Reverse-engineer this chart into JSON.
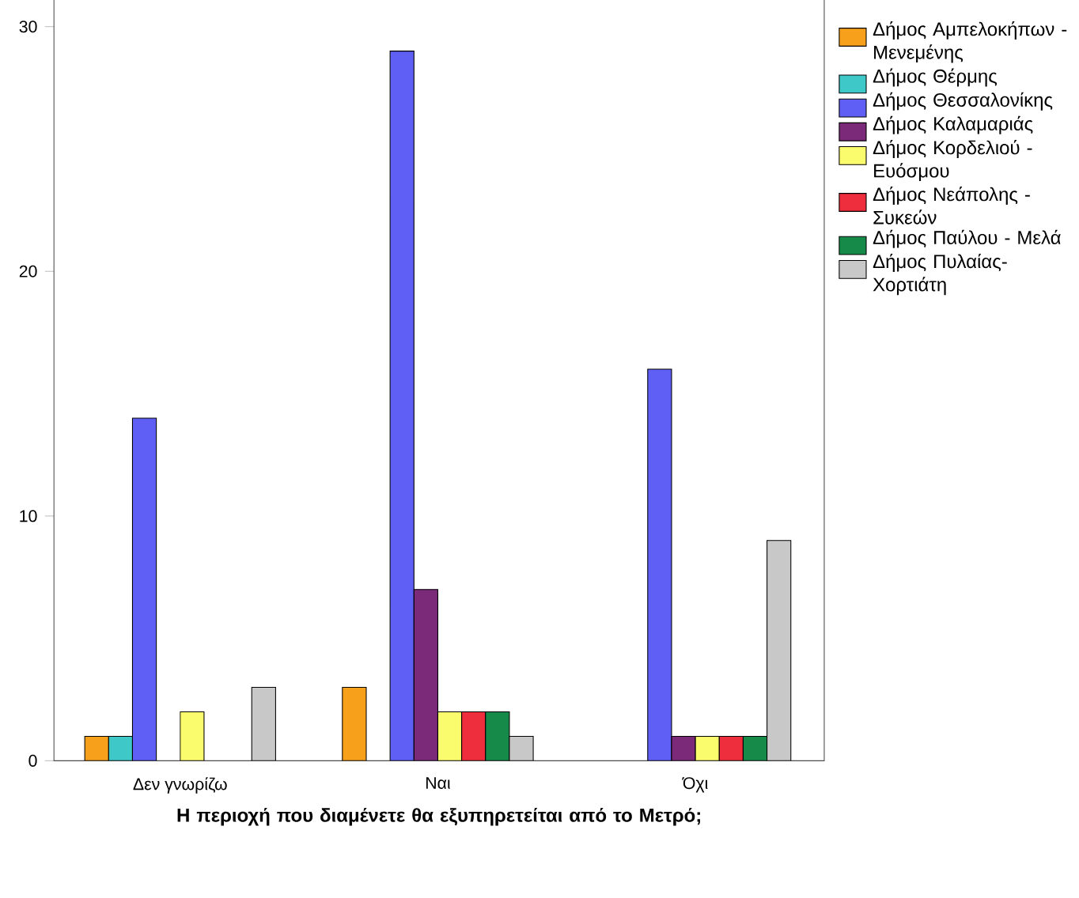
{
  "chart_data": {
    "type": "bar",
    "xlabel": "Η περιοχή που διαμένετε θα εξυπηρετείται  από το Μετρό;",
    "categories": [
      "Δεν γνωρίζω",
      "Ναι",
      "Όχι"
    ],
    "series": [
      {
        "name": "Δήμος Αμπελοκήπων - Μενεμένης",
        "color": "#f7a01c",
        "values": [
          1,
          3,
          null
        ]
      },
      {
        "name": "Δήμος Θέρμης",
        "color": "#3ec8c8",
        "values": [
          1,
          null,
          null
        ]
      },
      {
        "name": "Δήμος Θεσσαλονίκης",
        "color": "#5f5ff5",
        "values": [
          14,
          29,
          16
        ]
      },
      {
        "name": "Δήμος Καλαμαριάς",
        "color": "#7a2a78",
        "values": [
          null,
          7,
          1
        ]
      },
      {
        "name": "Δήμος Κορδελιού - Ευόσμου",
        "color": "#fbfb6e",
        "values": [
          2,
          2,
          1
        ]
      },
      {
        "name": "Δήμος Νεάπολης - Συκεών",
        "color": "#ee2e3c",
        "values": [
          null,
          2,
          1
        ]
      },
      {
        "name": "Δήμος Παύλου - Μελά",
        "color": "#168a48",
        "values": [
          null,
          2,
          1
        ]
      },
      {
        "name": "Δήμος Πυλαίας-Χορτιάτη",
        "color": "#c8c8c8",
        "values": [
          3,
          1,
          9
        ]
      }
    ],
    "ylim": [
      0,
      31.7
    ],
    "yticks": [
      0,
      10,
      20,
      30
    ],
    "grid": false,
    "legend": "right"
  }
}
